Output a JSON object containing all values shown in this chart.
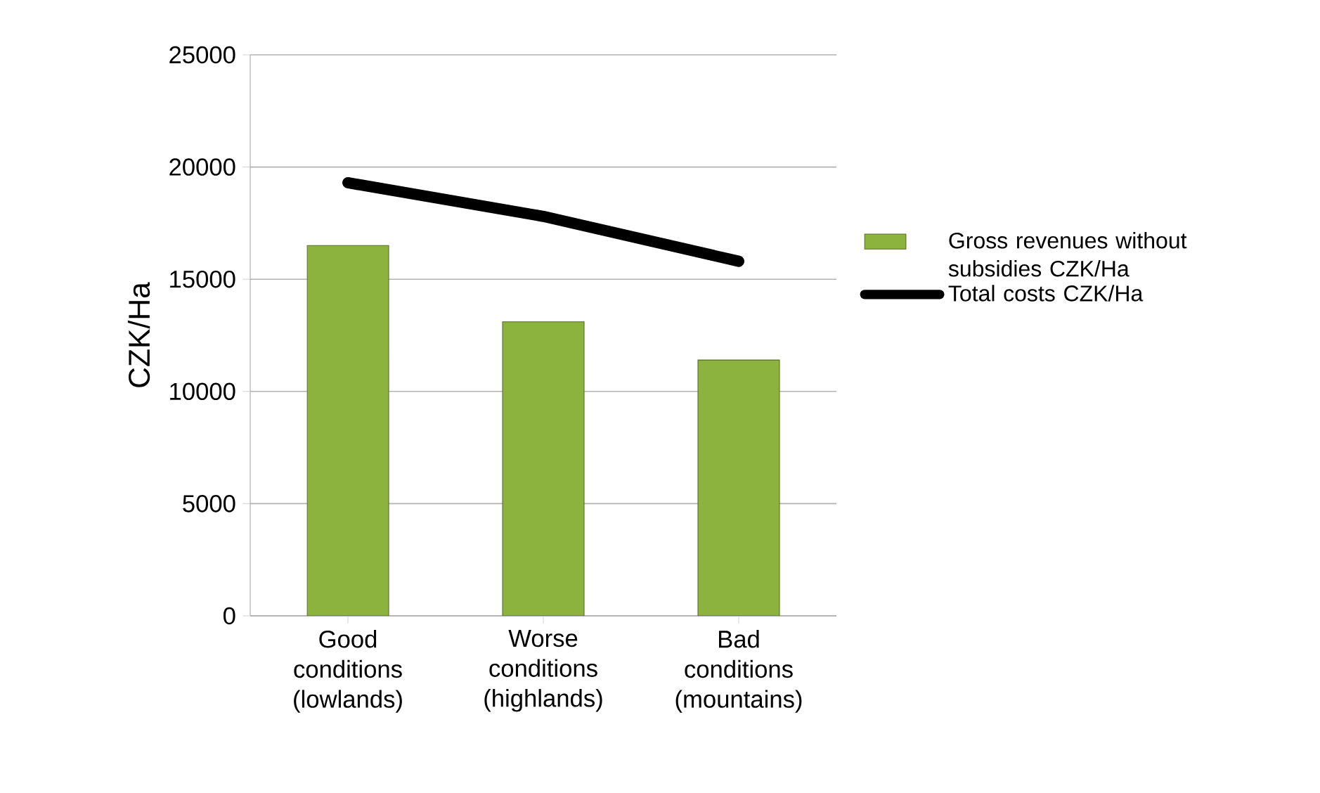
{
  "chart_data": {
    "type": "bar",
    "categories": [
      "Good conditions (lowlands)",
      "Worse conditions (highlands)",
      "Bad conditions (mountains)"
    ],
    "series": [
      {
        "name": "Gross revenues without subsidies CZK/Ha",
        "color": "#8db33f",
        "values": [
          16500,
          13100,
          11400
        ]
      },
      {
        "name": "Total costs CZK/Ha",
        "type": "line",
        "color": "#000000",
        "values": [
          19300,
          17800,
          15800
        ]
      }
    ],
    "ylabel": "CZK/Ha",
    "ylim": [
      0,
      25000
    ],
    "yticks": [
      0,
      5000,
      10000,
      15000,
      20000,
      25000
    ],
    "grid": "y",
    "legend": "right",
    "marker": "none",
    "line_style": "solid"
  }
}
